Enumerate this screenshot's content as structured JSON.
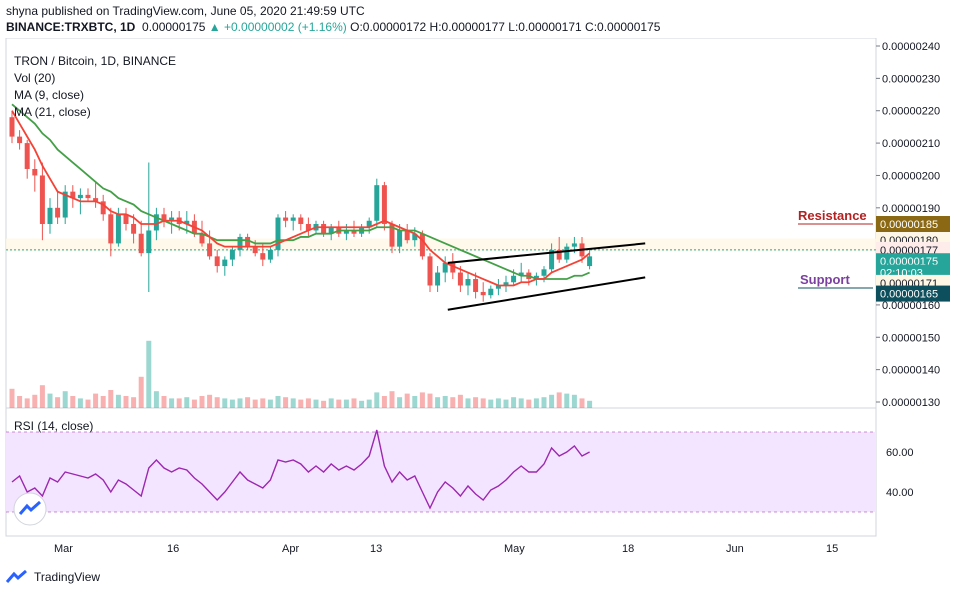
{
  "header": {
    "published": "shyna published on TradingView.com, June 05, 2020 21:49:59 UTC",
    "symbol": "BINANCE:TRXBTC, 1D",
    "last": "0.00000175",
    "change": "+0.00000002 (+1.16%)",
    "ohlc_o": "O:0.00000172",
    "ohlc_h": "H:0.00000177",
    "ohlc_l": "L:0.00000171",
    "ohlc_c": "C:0.00000175"
  },
  "legend": {
    "pair": "TRON / Bitcoin, 1D, BINANCE",
    "vol": "Vol (20)",
    "ma9": "MA (9, close)",
    "ma21": "MA (21, close)",
    "rsi": "RSI (14, close)"
  },
  "annotations": {
    "resistance": "Resistance",
    "support": "Support"
  },
  "price_tags": {
    "resistance_value": "0.00000185",
    "high_value": "0.00000180",
    "ma_value": "0.00000177",
    "last_value": "0.00000175",
    "countdown": "02:10:03",
    "low_value": "0.00000171",
    "support_value": "0.00000165"
  },
  "footer": {
    "brand": "TradingView"
  },
  "colors": {
    "up": "#26a69a",
    "down": "#ef5350",
    "ma9": "#f44336",
    "ma21": "#43a047",
    "rsi_line": "#9c27b0",
    "rsi_band": "#f3e5ff",
    "resistance_tag": "#8b6914",
    "support_tag": "#0d4f5c",
    "annotation_text": "#b22222",
    "annotation_support": "#7b3fa0"
  },
  "chart_data": {
    "type": "candlestick",
    "title": "TRON / Bitcoin, 1D, BINANCE",
    "x_ticks": [
      "Mar",
      "16",
      "Apr",
      "13",
      "May",
      "18",
      "Jun",
      "15"
    ],
    "y_ticks": [
      "0.00000240",
      "0.00000230",
      "0.00000220",
      "0.00000210",
      "0.00000200",
      "0.00000190",
      "0.00000180",
      "0.00000170",
      "0.00000160",
      "0.00000150",
      "0.00000140",
      "0.00000130"
    ],
    "rsi_ticks": [
      "60.00",
      "40.00"
    ],
    "ylim": [
      1.3e-06,
      2.4e-06
    ],
    "ohlc": [
      [
        2.18,
        2.2,
        2.1,
        2.12
      ],
      [
        2.12,
        2.14,
        2.08,
        2.1
      ],
      [
        2.1,
        2.11,
        1.99,
        2.02
      ],
      [
        2.02,
        2.05,
        1.95,
        2.0
      ],
      [
        2.0,
        2.04,
        1.8,
        1.85
      ],
      [
        1.85,
        1.93,
        1.82,
        1.9
      ],
      [
        1.9,
        1.95,
        1.85,
        1.87
      ],
      [
        1.87,
        1.97,
        1.85,
        1.95
      ],
      [
        1.95,
        1.97,
        1.9,
        1.93
      ],
      [
        1.93,
        1.96,
        1.88,
        1.94
      ],
      [
        1.94,
        1.96,
        1.92,
        1.93
      ],
      [
        1.93,
        1.98,
        1.9,
        1.92
      ],
      [
        1.92,
        1.94,
        1.86,
        1.88
      ],
      [
        1.88,
        1.9,
        1.75,
        1.79
      ],
      [
        1.79,
        1.9,
        1.78,
        1.88
      ],
      [
        1.88,
        1.9,
        1.83,
        1.85
      ],
      [
        1.85,
        1.88,
        1.79,
        1.82
      ],
      [
        1.82,
        1.86,
        1.75,
        1.76
      ],
      [
        1.76,
        2.04,
        1.64,
        1.83
      ],
      [
        1.83,
        1.9,
        1.8,
        1.88
      ],
      [
        1.88,
        1.9,
        1.84,
        1.86
      ],
      [
        1.86,
        1.89,
        1.82,
        1.87
      ],
      [
        1.87,
        1.89,
        1.83,
        1.85
      ],
      [
        1.85,
        1.89,
        1.82,
        1.86
      ],
      [
        1.86,
        1.88,
        1.81,
        1.82
      ],
      [
        1.82,
        1.86,
        1.78,
        1.79
      ],
      [
        1.79,
        1.83,
        1.74,
        1.75
      ],
      [
        1.75,
        1.77,
        1.7,
        1.72
      ],
      [
        1.72,
        1.75,
        1.69,
        1.74
      ],
      [
        1.74,
        1.78,
        1.72,
        1.77
      ],
      [
        1.77,
        1.82,
        1.75,
        1.81
      ],
      [
        1.81,
        1.82,
        1.77,
        1.78
      ],
      [
        1.78,
        1.8,
        1.75,
        1.76
      ],
      [
        1.76,
        1.79,
        1.72,
        1.74
      ],
      [
        1.74,
        1.78,
        1.73,
        1.77
      ],
      [
        1.77,
        1.88,
        1.75,
        1.87
      ],
      [
        1.87,
        1.89,
        1.84,
        1.86
      ],
      [
        1.86,
        1.88,
        1.83,
        1.87
      ],
      [
        1.87,
        1.88,
        1.83,
        1.85
      ],
      [
        1.85,
        1.87,
        1.81,
        1.83
      ],
      [
        1.83,
        1.86,
        1.82,
        1.85
      ],
      [
        1.85,
        1.86,
        1.81,
        1.82
      ],
      [
        1.82,
        1.85,
        1.8,
        1.84
      ],
      [
        1.84,
        1.86,
        1.81,
        1.82
      ],
      [
        1.82,
        1.85,
        1.8,
        1.83
      ],
      [
        1.83,
        1.86,
        1.81,
        1.82
      ],
      [
        1.82,
        1.85,
        1.81,
        1.84
      ],
      [
        1.84,
        1.87,
        1.82,
        1.86
      ],
      [
        1.86,
        1.99,
        1.84,
        1.97
      ],
      [
        1.97,
        1.98,
        1.83,
        1.85
      ],
      [
        1.85,
        1.86,
        1.76,
        1.78
      ],
      [
        1.78,
        1.85,
        1.76,
        1.83
      ],
      [
        1.83,
        1.85,
        1.79,
        1.8
      ],
      [
        1.8,
        1.84,
        1.78,
        1.82
      ],
      [
        1.82,
        1.83,
        1.74,
        1.75
      ],
      [
        1.75,
        1.76,
        1.64,
        1.66
      ],
      [
        1.66,
        1.72,
        1.64,
        1.7
      ],
      [
        1.7,
        1.75,
        1.67,
        1.73
      ],
      [
        1.73,
        1.76,
        1.68,
        1.7
      ],
      [
        1.7,
        1.72,
        1.64,
        1.66
      ],
      [
        1.66,
        1.7,
        1.63,
        1.68
      ],
      [
        1.68,
        1.7,
        1.62,
        1.64
      ],
      [
        1.64,
        1.67,
        1.61,
        1.63
      ],
      [
        1.63,
        1.66,
        1.62,
        1.65
      ],
      [
        1.65,
        1.68,
        1.63,
        1.66
      ],
      [
        1.66,
        1.69,
        1.64,
        1.67
      ],
      [
        1.67,
        1.71,
        1.66,
        1.69
      ],
      [
        1.69,
        1.73,
        1.67,
        1.7
      ],
      [
        1.7,
        1.71,
        1.66,
        1.68
      ],
      [
        1.68,
        1.7,
        1.66,
        1.69
      ],
      [
        1.69,
        1.72,
        1.67,
        1.71
      ],
      [
        1.71,
        1.79,
        1.7,
        1.77
      ],
      [
        1.77,
        1.81,
        1.73,
        1.74
      ],
      [
        1.74,
        1.79,
        1.73,
        1.78
      ],
      [
        1.78,
        1.81,
        1.76,
        1.79
      ],
      [
        1.79,
        1.81,
        1.73,
        1.75
      ],
      [
        1.72,
        1.77,
        1.71,
        1.75
      ]
    ],
    "volume": [
      1.6,
      1.0,
      0.8,
      1.1,
      1.9,
      1.2,
      0.9,
      1.4,
      1.0,
      0.8,
      0.7,
      1.2,
      1.0,
      1.5,
      1.1,
      1.0,
      0.9,
      2.6,
      5.6,
      1.4,
      1.0,
      0.8,
      0.8,
      0.9,
      0.7,
      1.0,
      1.1,
      0.9,
      0.8,
      0.7,
      0.8,
      0.9,
      0.7,
      0.8,
      0.7,
      1.0,
      0.9,
      0.8,
      0.7,
      0.8,
      0.7,
      0.6,
      0.8,
      0.7,
      0.7,
      0.8,
      0.6,
      0.7,
      1.3,
      1.0,
      1.4,
      0.9,
      1.2,
      1.0,
      1.3,
      1.2,
      0.9,
      1.0,
      0.9,
      1.1,
      0.8,
      0.9,
      0.8,
      0.7,
      0.8,
      0.7,
      0.9,
      0.8,
      0.7,
      0.8,
      0.9,
      1.1,
      1.3,
      1.2,
      1.1,
      0.8,
      0.6
    ],
    "ma9": [
      2.2,
      2.16,
      2.12,
      2.08,
      2.03,
      1.99,
      1.95,
      1.94,
      1.93,
      1.92,
      1.92,
      1.92,
      1.91,
      1.89,
      1.88,
      1.88,
      1.87,
      1.85,
      1.85,
      1.85,
      1.86,
      1.86,
      1.86,
      1.85,
      1.84,
      1.83,
      1.81,
      1.79,
      1.78,
      1.78,
      1.78,
      1.78,
      1.78,
      1.78,
      1.78,
      1.79,
      1.8,
      1.81,
      1.82,
      1.83,
      1.84,
      1.84,
      1.84,
      1.84,
      1.84,
      1.84,
      1.84,
      1.84,
      1.85,
      1.86,
      1.85,
      1.84,
      1.83,
      1.82,
      1.8,
      1.77,
      1.75,
      1.73,
      1.72,
      1.71,
      1.7,
      1.69,
      1.68,
      1.67,
      1.66,
      1.66,
      1.66,
      1.67,
      1.67,
      1.68,
      1.68,
      1.7,
      1.71,
      1.72,
      1.73,
      1.74,
      1.76
    ],
    "ma21": [
      2.22,
      2.2,
      2.18,
      2.16,
      2.13,
      2.11,
      2.08,
      2.06,
      2.04,
      2.02,
      2.0,
      1.98,
      1.96,
      1.95,
      1.93,
      1.92,
      1.91,
      1.89,
      1.88,
      1.87,
      1.86,
      1.85,
      1.84,
      1.83,
      1.82,
      1.82,
      1.81,
      1.8,
      1.8,
      1.8,
      1.8,
      1.8,
      1.79,
      1.79,
      1.79,
      1.8,
      1.8,
      1.8,
      1.81,
      1.81,
      1.82,
      1.82,
      1.82,
      1.83,
      1.83,
      1.83,
      1.83,
      1.83,
      1.84,
      1.84,
      1.84,
      1.83,
      1.83,
      1.83,
      1.82,
      1.81,
      1.8,
      1.79,
      1.78,
      1.77,
      1.76,
      1.75,
      1.74,
      1.73,
      1.72,
      1.71,
      1.7,
      1.69,
      1.69,
      1.68,
      1.68,
      1.68,
      1.68,
      1.68,
      1.69,
      1.69,
      1.7
    ],
    "rsi": [
      45,
      48,
      40,
      42,
      38,
      47,
      45,
      50,
      49,
      48,
      47,
      49,
      46,
      40,
      46,
      44,
      41,
      38,
      52,
      56,
      52,
      50,
      52,
      51,
      47,
      44,
      40,
      36,
      40,
      45,
      50,
      46,
      44,
      42,
      46,
      56,
      55,
      56,
      54,
      50,
      53,
      50,
      54,
      51,
      53,
      51,
      54,
      58,
      71,
      53,
      45,
      50,
      46,
      48,
      40,
      32,
      40,
      45,
      42,
      38,
      43,
      39,
      36,
      41,
      43,
      46,
      50,
      53,
      50,
      50,
      54,
      62,
      58,
      60,
      63,
      58,
      60
    ],
    "rsi_band": [
      30,
      70
    ],
    "trendlines": [
      {
        "name": "upper channel",
        "from": [
          58,
          1.73
        ],
        "to": [
          82,
          1.79
        ]
      },
      {
        "name": "lower channel",
        "from": [
          58,
          1.585
        ],
        "to": [
          82,
          1.685
        ]
      }
    ]
  }
}
